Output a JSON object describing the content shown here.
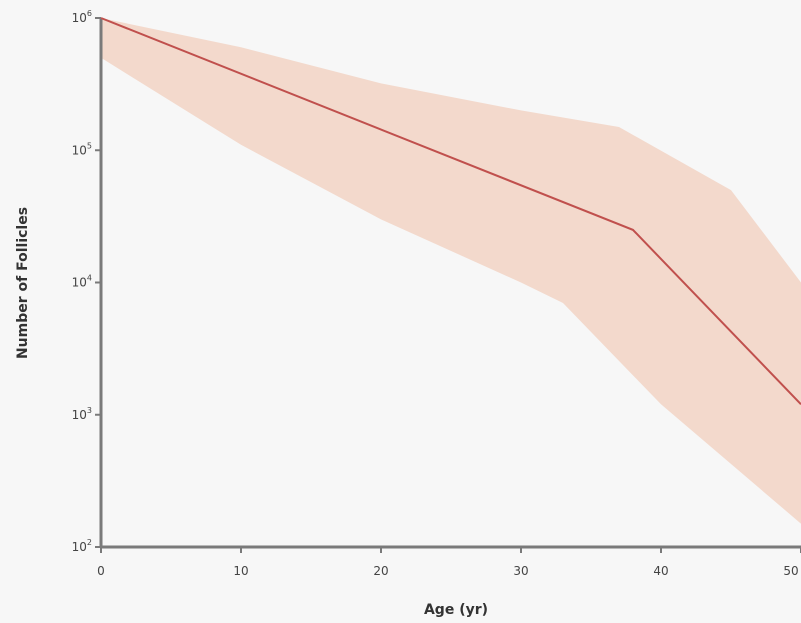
{
  "chart_data": {
    "type": "line",
    "title": "",
    "xlabel": "Age (yr)",
    "ylabel": "Number of Follicles",
    "yscale": "log",
    "xlim": [
      0,
      50
    ],
    "ylim": [
      100,
      1000000
    ],
    "x_ticks": [
      0,
      10,
      20,
      30,
      40,
      50
    ],
    "x_tick_labels": [
      "0",
      "10",
      "20",
      "30",
      "40",
      "50"
    ],
    "y_ticks": [
      100,
      1000,
      10000,
      100000,
      1000000
    ],
    "y_tick_labels": [
      {
        "base": "10",
        "exp": "2"
      },
      {
        "base": "10",
        "exp": "3"
      },
      {
        "base": "10",
        "exp": "4"
      },
      {
        "base": "10",
        "exp": "5"
      },
      {
        "base": "10",
        "exp": "6"
      }
    ],
    "grid": false,
    "series": [
      {
        "x": [
          0,
          38,
          50
        ],
        "values": [
          1000000,
          25000,
          1200
        ],
        "color": "#c0504d"
      }
    ],
    "band": {
      "upper": {
        "x": [
          0,
          10,
          20,
          30,
          37,
          45,
          50
        ],
        "values": [
          1000000,
          600000,
          320000,
          200000,
          150000,
          50000,
          10000
        ]
      },
      "lower": {
        "x": [
          0,
          10,
          20,
          30,
          33,
          40,
          50
        ],
        "values": [
          500000,
          110000,
          30000,
          10000,
          7000,
          1200,
          150
        ]
      },
      "color": "#f3d9cc"
    },
    "axis_color": "#7a7a7a"
  }
}
